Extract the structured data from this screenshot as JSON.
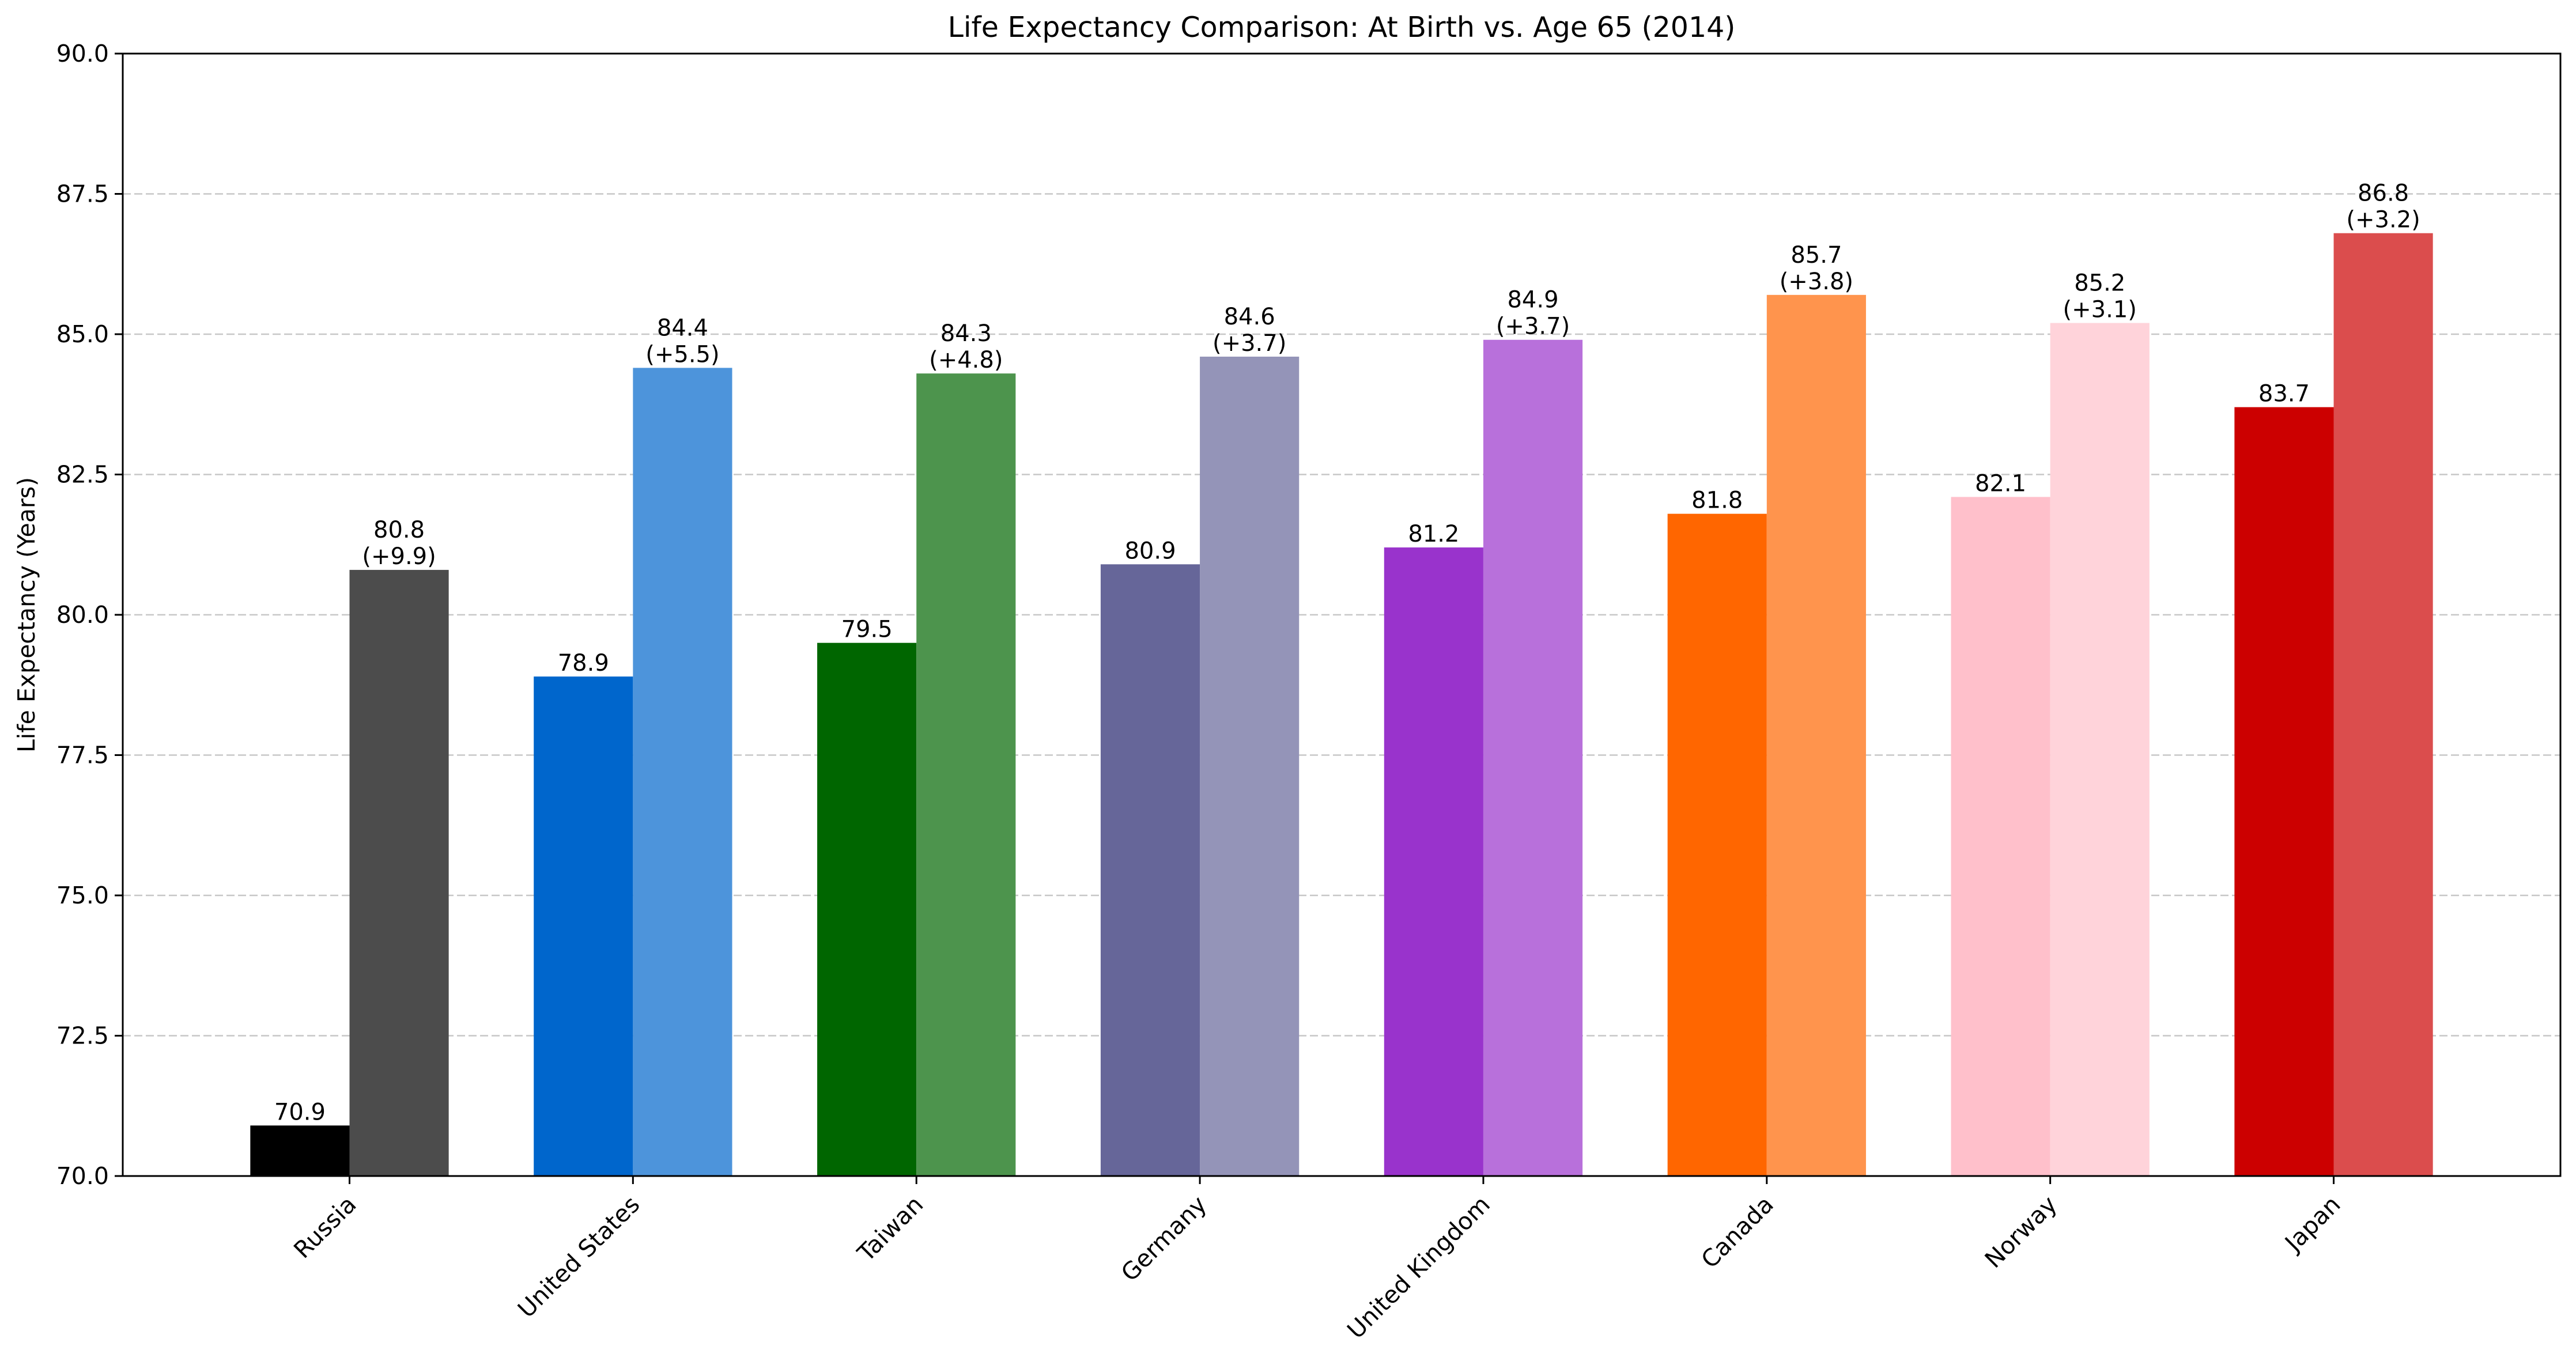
{
  "chart_data": {
    "type": "bar",
    "title": "Life Expectancy Comparison: At Birth vs. Age 65 (2014)",
    "xlabel": "",
    "ylabel": "Life Expectancy (Years)",
    "ylim": [
      70,
      90
    ],
    "yticks": [
      "70.0",
      "72.5",
      "75.0",
      "77.5",
      "80.0",
      "82.5",
      "85.0",
      "87.5",
      "90.0"
    ],
    "grid": "y-dashed",
    "legend": "none",
    "categories": [
      "Russia",
      "United States",
      "Taiwan",
      "Germany",
      "United Kingdom",
      "Canada",
      "Norway",
      "Japan"
    ],
    "series": [
      {
        "values": [
          70.9,
          78.9,
          79.5,
          80.9,
          81.2,
          81.8,
          82.1,
          83.7
        ],
        "labels": [
          "70.9",
          "78.9",
          "79.5",
          "80.9",
          "81.2",
          "81.8",
          "82.1",
          "83.7"
        ],
        "colors": [
          "#000000",
          "#0066cc",
          "#006600",
          "#666699",
          "#9933cc",
          "#ff6600",
          "#ffc0cb",
          "#cc0000"
        ]
      },
      {
        "values": [
          80.8,
          84.4,
          84.3,
          84.6,
          84.9,
          85.7,
          85.2,
          86.8
        ],
        "labels": [
          "80.8",
          "84.4",
          "84.3",
          "84.6",
          "84.9",
          "85.7",
          "85.2",
          "86.8"
        ],
        "gain_labels": [
          "(+9.9)",
          "(+5.5)",
          "(+4.8)",
          "(+3.7)",
          "(+3.7)",
          "(+3.8)",
          "(+3.1)",
          "(+3.2)"
        ],
        "colors": [
          "#4c4c4c",
          "#4d94db",
          "#4d944d",
          "#9494b8",
          "#b870db",
          "#ff944d",
          "#ffd3da",
          "#db4d4d"
        ]
      }
    ]
  }
}
